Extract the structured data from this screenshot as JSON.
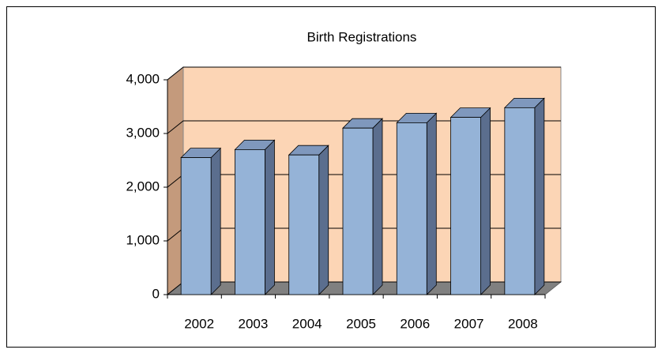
{
  "chart_data": {
    "type": "bar3d",
    "title": "Birth Registrations",
    "categories": [
      "2002",
      "2003",
      "2004",
      "2005",
      "2006",
      "2007",
      "2008"
    ],
    "values": [
      2550,
      2700,
      2600,
      3100,
      3200,
      3300,
      3480
    ],
    "color": "#95b3d7",
    "ylim": [
      0,
      4000
    ],
    "yticks": [
      0,
      {
        "value": 1000,
        "label": "1,000"
      },
      {
        "value": 2000,
        "label": "2,000"
      },
      {
        "value": 3000,
        "label": "3,000"
      },
      {
        "value": 4000,
        "label": "4,000"
      }
    ],
    "grid": true
  }
}
